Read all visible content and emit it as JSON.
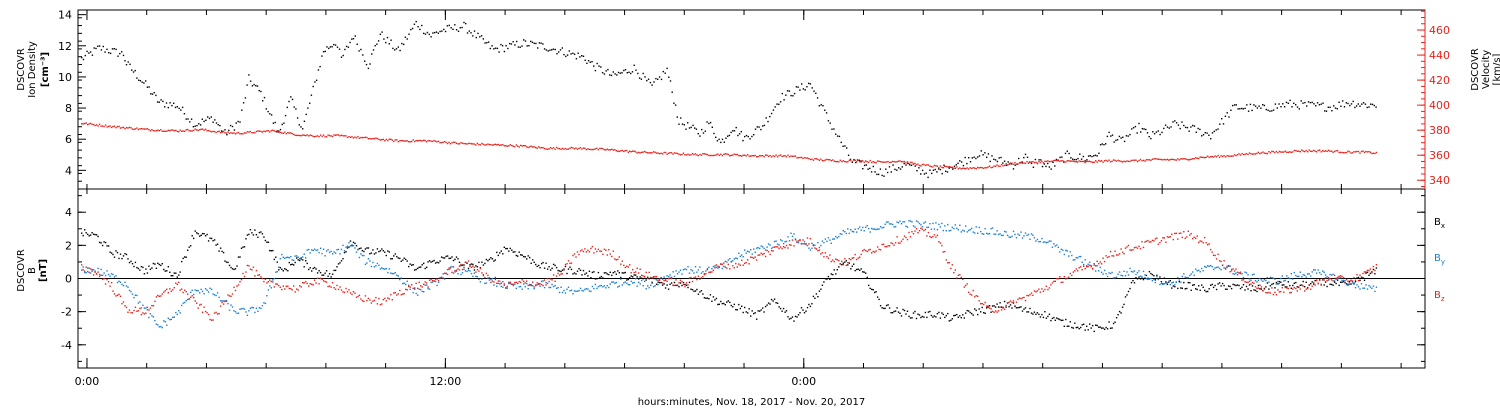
{
  "chart_data": [
    {
      "type": "scatter",
      "panel": "top",
      "ylabel_lines": [
        "DSCOVR",
        "Ion Density"
      ],
      "yunit": "[cm⁻³]",
      "y2label_lines": [
        "DSCOVR",
        "Velocity"
      ],
      "y2unit": "[km/s]",
      "ylim": [
        2.8,
        14.3
      ],
      "y2lim": [
        333,
        476
      ],
      "yticks": [
        4,
        6,
        8,
        10,
        12,
        14
      ],
      "y2ticks": [
        340,
        360,
        380,
        400,
        420,
        440,
        460
      ],
      "xlim": [
        -0.3,
        44.8
      ],
      "series": [
        {
          "key": "density",
          "axis": "left",
          "color": "#000000",
          "x": [
            -0.2,
            0.4,
            1.2,
            1.3,
            2.0,
            2.4,
            3.0,
            3.6,
            4.2,
            4.6,
            5.1,
            5.4,
            5.8,
            6.4,
            6.8,
            7.2,
            7.9,
            8.3,
            8.5,
            8.9,
            9.4,
            9.8,
            10.4,
            11.0,
            11.5,
            11.8,
            12.6,
            13.6,
            14.6,
            15.3,
            16.6,
            17.0,
            17.6,
            18.3,
            18.9,
            19.4,
            19.8,
            20.5,
            20.8,
            21.2,
            21.6,
            22.0,
            22.6,
            23.2,
            24.2,
            24.8,
            25.6,
            26.6,
            27.4,
            28.2,
            29.2,
            29.8,
            31.0,
            31.4,
            31.6,
            31.8,
            32.2,
            32.8,
            33.4,
            33.8,
            34.2,
            34.6,
            35.2,
            35.6,
            36.4,
            37.0,
            37.6,
            38.4,
            39.4,
            40.2,
            41.0,
            41.6,
            42.2,
            42.6,
            43.2
          ],
          "y": [
            11.2,
            11.9,
            11.5,
            10.9,
            9.4,
            8.4,
            8.2,
            7.0,
            7.4,
            6.4,
            7.2,
            9.9,
            9.0,
            6.4,
            8.6,
            6.7,
            11.7,
            12.3,
            11.2,
            12.7,
            10.8,
            12.8,
            11.7,
            13.5,
            12.7,
            13.0,
            13.3,
            11.8,
            12.2,
            12.0,
            11.3,
            10.7,
            10.1,
            10.6,
            9.4,
            10.5,
            7.2,
            6.4,
            7.1,
            5.8,
            6.8,
            6.1,
            6.9,
            8.7,
            9.6,
            7.3,
            4.6,
            3.9,
            4.4,
            3.8,
            4.5,
            5.1,
            4.4,
            4.9,
            4.3,
            4.7,
            4.2,
            5.0,
            4.8,
            5.1,
            6.3,
            5.9,
            6.8,
            6.2,
            7.0,
            6.7,
            6.3,
            8.1,
            8.0,
            8.3,
            8.2,
            8.1,
            8.4,
            8.3,
            8.2
          ]
        },
        {
          "key": "velocity",
          "axis": "right",
          "color": "#e8221b",
          "x": [
            -0.2,
            1.0,
            2.0,
            3.0,
            3.8,
            4.4,
            5.0,
            5.6,
            6.2,
            7.0,
            7.6,
            8.4,
            9.4,
            10.4,
            11.4,
            12.4,
            13.4,
            14.4,
            15.4,
            16.4,
            17.4,
            18.4,
            19.4,
            20.4,
            21.4,
            22.4,
            23.4,
            24.4,
            25.2,
            25.8,
            26.6,
            27.2,
            27.8,
            28.6,
            29.4,
            30.2,
            31.0,
            31.8,
            32.6,
            33.4,
            34.2,
            35.0,
            35.8,
            36.6,
            37.4,
            38.2,
            39.0,
            39.8,
            40.6,
            41.4,
            42.2,
            42.8,
            43.2
          ],
          "y": [
            386,
            383,
            381,
            380,
            381,
            379,
            378,
            379,
            380,
            377,
            376,
            376,
            374,
            372,
            372,
            370,
            369,
            368,
            366,
            366,
            365,
            363,
            362,
            361,
            361,
            360,
            360,
            357,
            356,
            356,
            355,
            356,
            353,
            351,
            350,
            351,
            354,
            355,
            356,
            355,
            356,
            356,
            357,
            357,
            359,
            360,
            362,
            363,
            364,
            364,
            363,
            363,
            362
          ]
        }
      ]
    },
    {
      "type": "scatter",
      "panel": "bottom",
      "ylabel_lines": [
        "DSCOVR",
        "B"
      ],
      "yunit": "[nT]",
      "ylim": [
        -5.4,
        5.4
      ],
      "yticks": [
        -4,
        -2,
        0,
        2,
        4
      ],
      "zero_line": true,
      "xlim": [
        -0.3,
        44.8
      ],
      "series": [
        {
          "key": "bx",
          "name": "B",
          "sub": "x",
          "color": "#000000",
          "x": [
            -0.2,
            0.3,
            0.8,
            1.3,
            1.9,
            2.4,
            3.0,
            3.6,
            4.2,
            4.9,
            5.4,
            5.9,
            6.5,
            7.0,
            7.6,
            8.2,
            8.8,
            9.3,
            9.9,
            10.4,
            11.0,
            11.6,
            12.2,
            12.8,
            13.4,
            14.0,
            14.6,
            15.2,
            15.8,
            16.4,
            17.0,
            17.6,
            18.2,
            18.8,
            19.4,
            20.0,
            20.6,
            21.2,
            21.8,
            22.4,
            23.0,
            23.6,
            24.2,
            24.8,
            25.4,
            26.0,
            26.6,
            27.2,
            27.8,
            28.4,
            29.0,
            29.6,
            30.2,
            30.8,
            31.4,
            32.0,
            32.6,
            33.2,
            33.8,
            34.4,
            35.0,
            35.6,
            36.2,
            36.8,
            37.4,
            38.0,
            38.6,
            39.2,
            39.8,
            40.4,
            41.0,
            41.6,
            42.2,
            42.8,
            43.2
          ],
          "y": [
            2.8,
            2.6,
            1.6,
            1.3,
            0.5,
            0.9,
            0.2,
            2.9,
            2.3,
            0.5,
            2.8,
            2.7,
            0.4,
            1.2,
            0.6,
            0.2,
            2.3,
            1.7,
            1.6,
            1.3,
            0.6,
            1.1,
            1.3,
            0.7,
            1.0,
            1.9,
            1.4,
            0.8,
            0.6,
            0.5,
            0.2,
            0.4,
            0.1,
            0.0,
            -0.4,
            -0.2,
            -0.9,
            -1.4,
            -1.7,
            -2.2,
            -1.3,
            -2.4,
            -1.5,
            0.1,
            1.0,
            0.3,
            -1.6,
            -2.0,
            -2.2,
            -2.1,
            -2.4,
            -2.0,
            -1.8,
            -1.5,
            -1.9,
            -2.1,
            -2.6,
            -2.8,
            -3.0,
            -2.7,
            -0.2,
            0.3,
            -0.3,
            -0.4,
            -0.6,
            -0.4,
            -0.5,
            -0.6,
            -0.3,
            -0.4,
            -0.3,
            -0.2,
            -0.4,
            0.2,
            0.5
          ]
        },
        {
          "key": "by",
          "name": "B",
          "sub": "y",
          "color": "#1a7fd4",
          "x": [
            -0.2,
            0.3,
            0.8,
            1.3,
            1.9,
            2.4,
            3.0,
            3.6,
            4.2,
            4.9,
            5.4,
            5.9,
            6.5,
            7.0,
            7.6,
            8.2,
            8.8,
            9.3,
            9.9,
            10.4,
            11.0,
            11.6,
            12.2,
            12.8,
            13.4,
            14.0,
            14.6,
            15.2,
            15.8,
            16.4,
            17.0,
            17.6,
            18.2,
            18.8,
            19.4,
            20.0,
            20.6,
            21.2,
            21.8,
            22.4,
            23.0,
            23.6,
            24.2,
            24.8,
            25.4,
            26.0,
            26.6,
            27.2,
            27.8,
            28.4,
            29.0,
            29.6,
            30.2,
            30.8,
            31.4,
            32.0,
            32.6,
            33.2,
            33.8,
            34.4,
            35.0,
            35.6,
            36.2,
            36.8,
            37.4,
            38.0,
            38.6,
            39.2,
            39.8,
            40.4,
            41.0,
            41.6,
            42.2,
            42.8,
            43.2
          ],
          "y": [
            0.6,
            0.5,
            0.2,
            -0.3,
            -1.8,
            -2.9,
            -2.1,
            -0.6,
            -0.8,
            -1.9,
            -2.0,
            -1.6,
            1.4,
            1.2,
            1.8,
            1.5,
            2.1,
            1.1,
            0.7,
            0.2,
            -0.8,
            -0.3,
            0.6,
            0.3,
            -0.1,
            -0.4,
            -0.5,
            -0.3,
            -0.6,
            -0.8,
            -0.5,
            -0.3,
            -0.1,
            -0.4,
            0.2,
            0.6,
            0.5,
            0.7,
            1.4,
            1.8,
            2.1,
            2.6,
            1.9,
            2.3,
            2.8,
            3.0,
            3.2,
            3.4,
            3.3,
            3.2,
            3.1,
            3.0,
            2.9,
            2.7,
            2.6,
            2.4,
            1.7,
            1.2,
            0.6,
            0.2,
            0.5,
            0.1,
            -0.3,
            0.2,
            0.6,
            0.8,
            0.3,
            0.0,
            -0.1,
            0.2,
            0.4,
            0.2,
            -0.2,
            -0.5,
            -0.7
          ]
        },
        {
          "key": "bz",
          "name": "B",
          "sub": "z",
          "color": "#e8221b",
          "x": [
            -0.2,
            0.3,
            0.8,
            1.3,
            1.9,
            2.4,
            3.0,
            3.6,
            4.2,
            4.9,
            5.4,
            5.9,
            6.5,
            7.0,
            7.6,
            8.2,
            8.8,
            9.3,
            9.9,
            10.4,
            11.0,
            11.6,
            12.2,
            12.8,
            13.4,
            14.0,
            14.6,
            15.2,
            15.8,
            16.4,
            17.0,
            17.6,
            18.2,
            18.8,
            19.4,
            20.0,
            20.6,
            21.2,
            21.8,
            22.4,
            23.0,
            23.6,
            24.2,
            24.8,
            25.4,
            26.0,
            26.6,
            27.2,
            27.8,
            28.4,
            29.0,
            29.6,
            30.2,
            30.8,
            31.4,
            32.0,
            32.6,
            33.2,
            33.8,
            34.4,
            35.0,
            35.6,
            36.2,
            36.8,
            37.4,
            38.0,
            38.6,
            39.2,
            39.8,
            40.4,
            41.0,
            41.6,
            42.2,
            42.8,
            43.2
          ],
          "y": [
            0.7,
            0.4,
            -0.4,
            -1.8,
            -2.0,
            -1.1,
            -0.3,
            -1.4,
            -2.4,
            -0.6,
            0.8,
            -0.2,
            -0.4,
            -0.6,
            -0.1,
            -0.3,
            -0.9,
            -1.2,
            -1.4,
            -0.8,
            -0.4,
            -0.2,
            0.6,
            0.9,
            0.1,
            -0.4,
            -0.2,
            -0.3,
            0.2,
            1.6,
            1.8,
            1.5,
            0.6,
            0.2,
            -0.1,
            -0.3,
            0.3,
            0.8,
            0.9,
            1.3,
            1.8,
            2.2,
            2.3,
            1.3,
            1.0,
            1.6,
            2.0,
            2.4,
            2.9,
            2.6,
            0.5,
            -0.8,
            -1.9,
            -1.6,
            -1.1,
            -0.6,
            0.0,
            0.5,
            1.0,
            1.6,
            1.9,
            2.2,
            2.5,
            2.7,
            2.3,
            1.0,
            0.2,
            -0.5,
            -0.8,
            -0.6,
            -0.4,
            0.1,
            -0.1,
            0.3,
            0.8
          ]
        }
      ]
    }
  ],
  "x_axis": {
    "tick_labels": [
      {
        "x": 0,
        "label": "0:00"
      },
      {
        "x": 12,
        "label": "12:00"
      },
      {
        "x": 24,
        "label": "0:00"
      }
    ],
    "minor_step": 2,
    "xlabel": "hours:minutes, Nov. 18, 2017 - Nov. 20, 2017"
  },
  "colors": {
    "black": "#000000",
    "red": "#e8221b",
    "blue": "#1a7fd4"
  }
}
